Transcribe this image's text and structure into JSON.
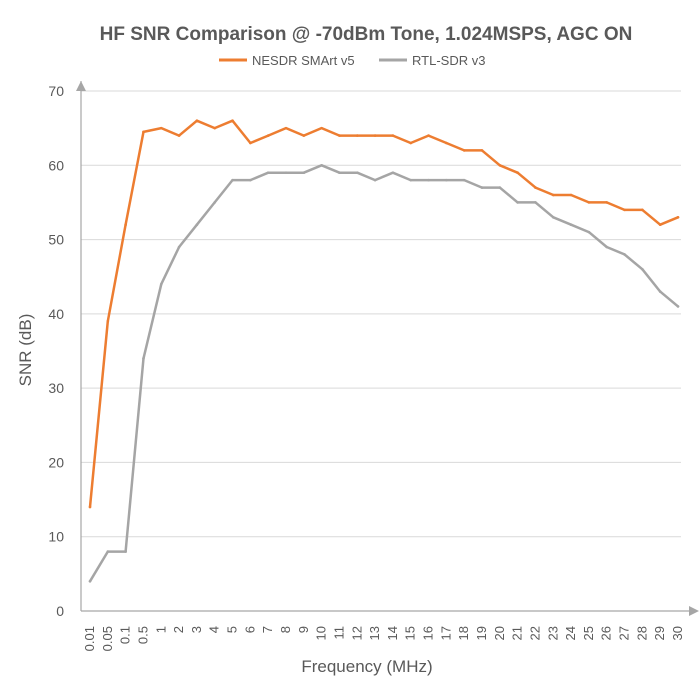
{
  "chart_data": {
    "type": "line",
    "title": "HF SNR Comparison @ -70dBm Tone, 1.024MSPS, AGC ON",
    "xlabel": "Frequency (MHz)",
    "ylabel": "SNR (dB)",
    "ylim": [
      0,
      70
    ],
    "yticks": [
      "0",
      "10",
      "20",
      "30",
      "40",
      "50",
      "60",
      "70"
    ],
    "grid": "horizontal",
    "legend_position": "top",
    "categories": [
      "0.01",
      "0.05",
      "0.1",
      "0.5",
      "1",
      "2",
      "3",
      "4",
      "5",
      "6",
      "7",
      "8",
      "9",
      "10",
      "11",
      "12",
      "13",
      "14",
      "15",
      "16",
      "17",
      "18",
      "19",
      "20",
      "21",
      "22",
      "23",
      "24",
      "25",
      "26",
      "27",
      "28",
      "29",
      "30"
    ],
    "series": [
      {
        "name": "NESDR SMArt v5",
        "color": "#ed7d31",
        "values": [
          14,
          39,
          52,
          64.5,
          65,
          64,
          66,
          65,
          66,
          63,
          64,
          65,
          64,
          65,
          64,
          64,
          64,
          64,
          63,
          64,
          63,
          62,
          62,
          60,
          59,
          57,
          56,
          56,
          55,
          55,
          54,
          54,
          52,
          53
        ]
      },
      {
        "name": "RTL-SDR v3",
        "color": "#a5a5a5",
        "values": [
          4,
          8,
          8,
          34,
          44,
          49,
          52,
          55,
          58,
          58,
          59,
          59,
          59,
          60,
          59,
          59,
          58,
          59,
          58,
          58,
          58,
          58,
          57,
          57,
          55,
          55,
          53,
          52,
          51,
          49,
          48,
          46,
          43,
          41
        ]
      }
    ]
  }
}
